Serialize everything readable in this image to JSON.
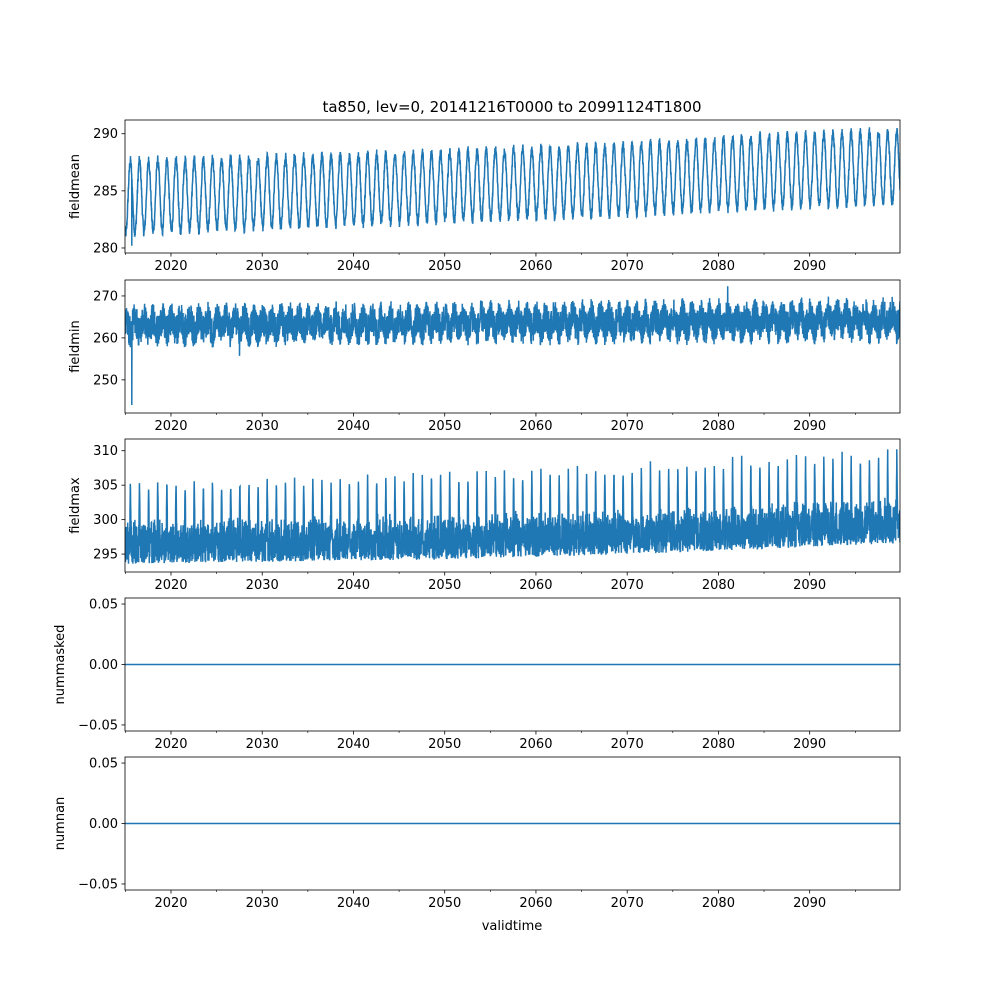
{
  "chart_data": {
    "type": "line",
    "title": "ta850, lev=0, 20141216T0000 to 20991124T1800",
    "xlabel": "validtime",
    "xlim": [
      2014.96,
      2099.9
    ],
    "x_ticks": [
      2020,
      2030,
      2040,
      2050,
      2060,
      2070,
      2080,
      2090
    ],
    "x_tick_labels": [
      "2020",
      "2030",
      "2040",
      "2050",
      "2060",
      "2070",
      "2080",
      "2090"
    ],
    "x_minor_step": 5,
    "color": "#1f77b4",
    "panels": [
      {
        "ylabel": "fieldmean",
        "ylim": [
          279.56,
          291.2
        ],
        "y_ticks": [
          280,
          285,
          290
        ],
        "y_tick_labels": [
          "280",
          "285",
          "290"
        ],
        "pattern": "annual-cycle",
        "envelope": {
          "years": [
            2015,
            2030,
            2050,
            2070,
            2085,
            2100
          ],
          "low": [
            281.3,
            281.8,
            282.4,
            283.0,
            283.6,
            284.0
          ],
          "high": [
            287.6,
            287.9,
            288.4,
            289.0,
            289.8,
            290.2
          ]
        },
        "events": [
          {
            "x": 2015.7,
            "y": 280.2
          }
        ]
      },
      {
        "ylabel": "fieldmin",
        "ylim": [
          242.1,
          273.8
        ],
        "y_ticks": [
          250,
          260,
          270
        ],
        "y_tick_labels": [
          "250",
          "260",
          "270"
        ],
        "pattern": "noisy-band",
        "envelope": {
          "years": [
            2015,
            2050,
            2100
          ],
          "low": [
            257.5,
            258.0,
            258.5
          ],
          "high": [
            268.5,
            269.0,
            270.0
          ]
        },
        "events": [
          {
            "x": 2015.7,
            "y": 244
          },
          {
            "x": 2027.5,
            "y": 255.7
          },
          {
            "x": 2081,
            "y": 272.3
          }
        ]
      },
      {
        "ylabel": "fieldmax",
        "ylim": [
          292.4,
          311.7
        ],
        "y_ticks": [
          295,
          300,
          305,
          310
        ],
        "y_tick_labels": [
          "295",
          "300",
          "305",
          "310"
        ],
        "pattern": "band-with-annual-peaks",
        "envelope": {
          "years": [
            2015,
            2050,
            2075,
            2100
          ],
          "low": [
            293.6,
            294.2,
            295.2,
            296.5
          ],
          "high": [
            300.5,
            301.0,
            302.0,
            303.5
          ],
          "peak": [
            306.0,
            307.5,
            309.0,
            310.5
          ]
        }
      },
      {
        "ylabel": "nummasked",
        "ylim": [
          -0.055,
          0.055
        ],
        "y_ticks": [
          -0.05,
          0.0,
          0.05
        ],
        "y_tick_labels": [
          "−0.05",
          "0.00",
          "0.05"
        ],
        "pattern": "constant",
        "value": 0.0
      },
      {
        "ylabel": "numnan",
        "ylim": [
          -0.055,
          0.055
        ],
        "y_ticks": [
          -0.05,
          0.0,
          0.05
        ],
        "y_tick_labels": [
          "−0.05",
          "0.00",
          "0.05"
        ],
        "pattern": "constant",
        "value": 0.0
      }
    ]
  }
}
